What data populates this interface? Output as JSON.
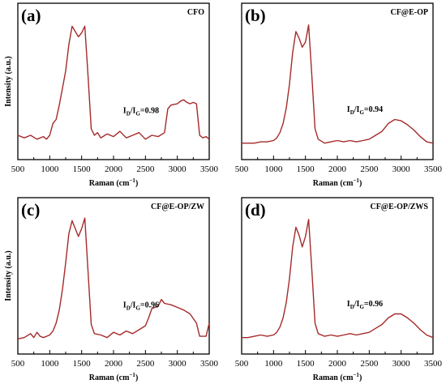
{
  "chart_data": [
    {
      "type": "line",
      "panel_letter": "(a)",
      "title": "CFO",
      "xlabel": "Raman (cm⁻¹)",
      "ylabel": "Intensity (a.u.)",
      "xlim": [
        500,
        3500
      ],
      "ylim": [
        0,
        100
      ],
      "xticks": [
        500,
        1000,
        1500,
        2000,
        2500,
        3000,
        3500
      ],
      "annotation": {
        "text": "ID/IG=0.98",
        "ratio_label": "ID/IG",
        "value": "0.98",
        "x": 2150,
        "y": 26
      },
      "series": [
        {
          "color": "#a52a2a",
          "x": [
            500,
            600,
            700,
            800,
            900,
            950,
            1000,
            1050,
            1100,
            1150,
            1200,
            1250,
            1300,
            1350,
            1400,
            1450,
            1500,
            1550,
            1600,
            1650,
            1700,
            1750,
            1800,
            1900,
            2000,
            2100,
            2200,
            2300,
            2400,
            2500,
            2600,
            2700,
            2800,
            2850,
            2900,
            3000,
            3050,
            3100,
            3150,
            3200,
            3250,
            3300,
            3350,
            3400,
            3450,
            3500
          ],
          "y": [
            9,
            7,
            9,
            6,
            8,
            6,
            9,
            18,
            21,
            32,
            45,
            58,
            78,
            92,
            88,
            84,
            87,
            92,
            55,
            14,
            9,
            11,
            7,
            10,
            8,
            12,
            7,
            9,
            11,
            6,
            9,
            8,
            11,
            29,
            32,
            33,
            35,
            36,
            34,
            33,
            34,
            33,
            9,
            7,
            8,
            6
          ]
        }
      ]
    },
    {
      "type": "line",
      "panel_letter": "(b)",
      "title": "CF@E-OP",
      "xlabel": "Raman (cm⁻¹)",
      "ylabel": "",
      "xlim": [
        500,
        3500
      ],
      "ylim": [
        0,
        100
      ],
      "xticks": [
        500,
        1000,
        1500,
        2000,
        2500,
        3000,
        3500
      ],
      "annotation": {
        "text": "ID/IG=0.94",
        "ratio_label": "ID/IG",
        "value": "0.94",
        "x": 2150,
        "y": 27
      },
      "series": [
        {
          "color": "#a52a2a",
          "x": [
            500,
            600,
            700,
            800,
            900,
            1000,
            1050,
            1100,
            1150,
            1200,
            1250,
            1300,
            1350,
            1400,
            1450,
            1500,
            1550,
            1600,
            1650,
            1700,
            1800,
            1900,
            2000,
            2100,
            2200,
            2300,
            2400,
            2500,
            2600,
            2700,
            2800,
            2900,
            3000,
            3100,
            3200,
            3300,
            3400,
            3500
          ],
          "y": [
            3,
            3,
            3,
            4,
            4,
            5,
            7,
            11,
            18,
            30,
            48,
            72,
            88,
            83,
            76,
            80,
            93,
            55,
            14,
            6,
            3,
            4,
            5,
            4,
            5,
            4,
            5,
            6,
            9,
            12,
            18,
            21,
            20,
            17,
            13,
            8,
            4,
            3
          ]
        }
      ]
    },
    {
      "type": "line",
      "panel_letter": "(c)",
      "title": "CF@E-OP/ZW",
      "xlabel": "Raman (cm⁻¹)",
      "ylabel": "Intensity (a.u.)",
      "xlim": [
        500,
        3500
      ],
      "ylim": [
        0,
        100
      ],
      "xticks": [
        500,
        1000,
        1500,
        2000,
        2500,
        3000,
        3500
      ],
      "annotation": {
        "text": "ID/IG=0.96",
        "ratio_label": "ID/IG",
        "value": "0.96",
        "x": 2150,
        "y": 26
      },
      "series": [
        {
          "color": "#a52a2a",
          "x": [
            500,
            600,
            700,
            750,
            800,
            850,
            900,
            950,
            1000,
            1050,
            1100,
            1150,
            1200,
            1250,
            1300,
            1350,
            1400,
            1450,
            1500,
            1550,
            1600,
            1650,
            1700,
            1800,
            1900,
            2000,
            2100,
            2200,
            2300,
            2400,
            2500,
            2550,
            2600,
            2700,
            2750,
            2800,
            2900,
            3000,
            3100,
            3200,
            3300,
            3350,
            3400,
            3450,
            3500
          ],
          "y": [
            2,
            3,
            6,
            3,
            7,
            4,
            3,
            4,
            5,
            8,
            14,
            24,
            40,
            60,
            82,
            92,
            86,
            80,
            86,
            94,
            54,
            13,
            6,
            5,
            3,
            7,
            5,
            8,
            6,
            9,
            12,
            18,
            25,
            27,
            32,
            29,
            28,
            26,
            24,
            21,
            14,
            4,
            4,
            4,
            14
          ]
        }
      ]
    },
    {
      "type": "line",
      "panel_letter": "(d)",
      "title": "CF@E-OP/ZWS",
      "xlabel": "Raman (cm⁻¹)",
      "ylabel": "",
      "xlim": [
        500,
        3500
      ],
      "ylim": [
        0,
        100
      ],
      "xticks": [
        500,
        1000,
        1500,
        2000,
        2500,
        3000,
        3500
      ],
      "annotation": {
        "text": "ID/IG=0.96",
        "ratio_label": "ID/IG",
        "value": "0.96",
        "x": 2150,
        "y": 27
      },
      "series": [
        {
          "color": "#a52a2a",
          "x": [
            500,
            600,
            700,
            800,
            900,
            1000,
            1050,
            1100,
            1150,
            1200,
            1250,
            1300,
            1350,
            1400,
            1450,
            1500,
            1550,
            1600,
            1650,
            1700,
            1800,
            1900,
            2000,
            2100,
            2200,
            2300,
            2400,
            2500,
            2600,
            2700,
            2800,
            2900,
            3000,
            3100,
            3200,
            3300,
            3400,
            3500
          ],
          "y": [
            3,
            3,
            4,
            5,
            4,
            5,
            7,
            11,
            18,
            30,
            48,
            72,
            87,
            81,
            72,
            80,
            93,
            55,
            14,
            6,
            4,
            5,
            4,
            5,
            6,
            5,
            6,
            7,
            10,
            13,
            18,
            21,
            21,
            18,
            14,
            9,
            5,
            3
          ]
        }
      ]
    }
  ]
}
